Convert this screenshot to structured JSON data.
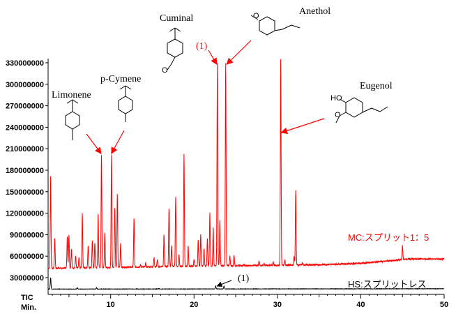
{
  "chart_data": {
    "type": "line",
    "xlabel": "Min.",
    "ylabel": "TIC",
    "xlim": [
      2.5,
      50
    ],
    "ylim": [
      0,
      335000000
    ],
    "xticks": [
      10,
      20,
      30,
      40,
      50
    ],
    "yticks": [
      30000000,
      60000000,
      90000000,
      120000000,
      150000000,
      180000000,
      210000000,
      240000000,
      270000000,
      300000000,
      330000000
    ],
    "ytick_labels": [
      "30000000",
      "60000000",
      "90000000",
      "120000000",
      "150000000",
      "180000000",
      "210000000",
      "240000000",
      "270000000",
      "300000000",
      "330000000"
    ],
    "xtick_labels": [
      "10",
      "20",
      "30",
      "40",
      "50"
    ],
    "colors": {
      "mc": "#ff0000",
      "hs": "#000000",
      "arrow": "#ff0000"
    },
    "series": [
      {
        "name": "MC:スプリット1：5",
        "color": "#ff0000",
        "peaks": [
          [
            2.8,
            172000000
          ],
          [
            3.3,
            85000000
          ],
          [
            4.8,
            88000000
          ],
          [
            5.0,
            90000000
          ],
          [
            5.3,
            70000000
          ],
          [
            5.8,
            60000000
          ],
          [
            6.2,
            58000000
          ],
          [
            6.6,
            120000000
          ],
          [
            7.3,
            75000000
          ],
          [
            7.8,
            82000000
          ],
          [
            8.1,
            78000000
          ],
          [
            8.5,
            118000000
          ],
          [
            8.9,
            201000000
          ],
          [
            9.3,
            92000000
          ],
          [
            10.1,
            201000000
          ],
          [
            10.5,
            128000000
          ],
          [
            10.8,
            146000000
          ],
          [
            11.2,
            78000000
          ],
          [
            12.8,
            112000000
          ],
          [
            13.6,
            48000000
          ],
          [
            14.2,
            50000000
          ],
          [
            15.2,
            58000000
          ],
          [
            15.6,
            55000000
          ],
          [
            16.4,
            90000000
          ],
          [
            17.0,
            127000000
          ],
          [
            17.3,
            75000000
          ],
          [
            17.8,
            143000000
          ],
          [
            18.2,
            62000000
          ],
          [
            18.8,
            202000000
          ],
          [
            19.3,
            75000000
          ],
          [
            20.0,
            55000000
          ],
          [
            20.5,
            82000000
          ],
          [
            20.8,
            90000000
          ],
          [
            21.2,
            70000000
          ],
          [
            21.6,
            84000000
          ],
          [
            21.9,
            120000000
          ],
          [
            22.3,
            100000000
          ],
          [
            22.8,
            330000000
          ],
          [
            23.1,
            110000000
          ],
          [
            23.8,
            330000000
          ],
          [
            24.3,
            60000000
          ],
          [
            24.8,
            62000000
          ],
          [
            26.0,
            49000000
          ],
          [
            27.2,
            48000000
          ],
          [
            27.8,
            53000000
          ],
          [
            28.4,
            50000000
          ],
          [
            29.5,
            52000000
          ],
          [
            30.4,
            335000000
          ],
          [
            30.9,
            54000000
          ],
          [
            32.0,
            60000000
          ],
          [
            32.2,
            152000000
          ],
          [
            33.0,
            50000000
          ],
          [
            45.0,
            75000000
          ]
        ],
        "baseline": [
          [
            2.5,
            43000000
          ],
          [
            20,
            46000000
          ],
          [
            35,
            48000000
          ],
          [
            40,
            50000000
          ],
          [
            44,
            54000000
          ],
          [
            45.5,
            56000000
          ],
          [
            50,
            56000000
          ]
        ]
      },
      {
        "name": "HS:スプリットレス",
        "color": "#000000",
        "peaks": [
          [
            2.8,
            30000000
          ],
          [
            6.0,
            16000000
          ],
          [
            8.3,
            16000000
          ],
          [
            15.8,
            15000000
          ],
          [
            22.6,
            18000000
          ],
          [
            23.6,
            18000000
          ]
        ],
        "baseline": [
          [
            2.5,
            14000000
          ],
          [
            50,
            14500000
          ]
        ]
      }
    ],
    "annotations": {
      "compounds": [
        "Limonene",
        "p-Cymene",
        "Cuminal",
        "Anethol",
        "Eugenol"
      ],
      "peak_marker": "(1)",
      "hs_marker": "(1)"
    }
  }
}
